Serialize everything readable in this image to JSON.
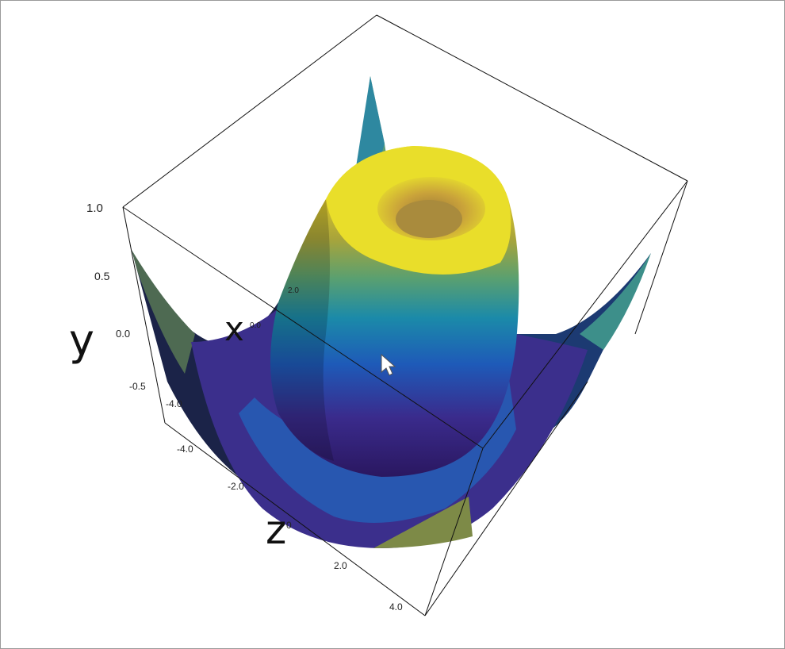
{
  "chart_data": {
    "type": "surface3d",
    "title": "",
    "axis_names": {
      "x": "x",
      "y": "y",
      "z": "z"
    },
    "y_ticks": [
      "1.0",
      "0.5",
      "0.0",
      "-0.5"
    ],
    "x_ticks": [
      "2.0",
      "0.0"
    ],
    "z_ticks": [
      "-4.0",
      "-4.0",
      "-2.0",
      "0",
      "2.0",
      "4.0"
    ],
    "ranges": {
      "x": [
        -5,
        5
      ],
      "y": [
        -1,
        1
      ],
      "z": [
        -5,
        5
      ]
    },
    "function": "sin(r)/r style radial surface",
    "colormap": [
      "#2c0f52",
      "#3b2f8f",
      "#1d57b5",
      "#1a88a8",
      "#4aa67a",
      "#b6b040",
      "#e2d31c",
      "#f3f02a"
    ]
  }
}
